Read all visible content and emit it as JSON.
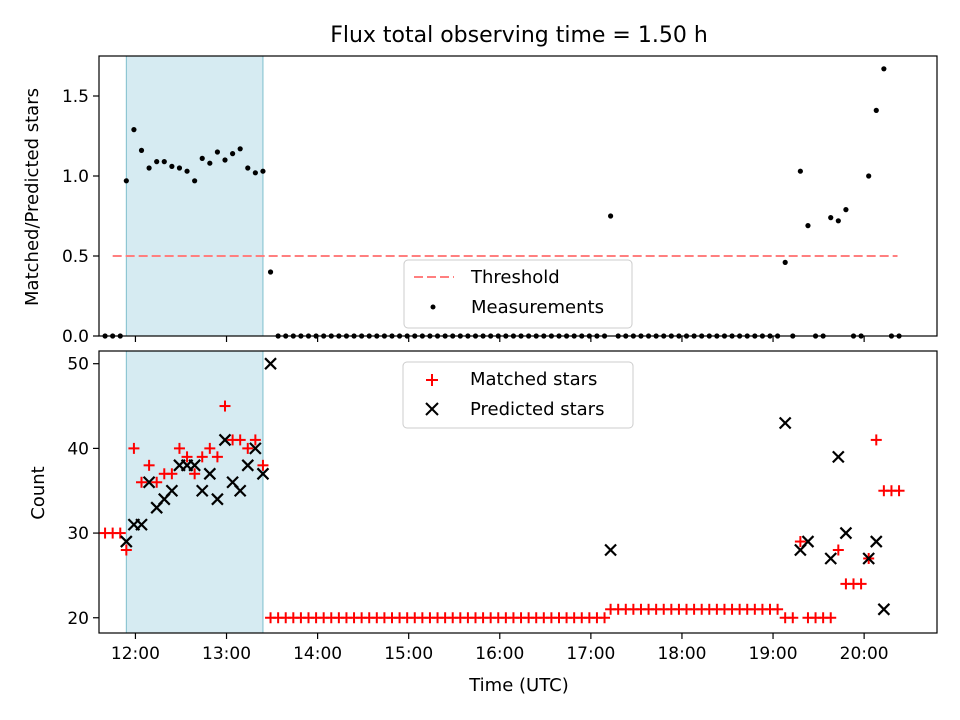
{
  "figure": {
    "title": "Flux total observing time = 1.50 h",
    "xlabel": "Time (UTC)"
  },
  "chart_data": [
    {
      "type": "scatter",
      "ylabel": "Matched/Predicted stars",
      "ylim": [
        0,
        1.75
      ],
      "xlim": [
        "11:36",
        "20:48"
      ],
      "yticks": [
        0.0,
        0.5,
        1.0,
        1.5
      ],
      "ytick_labels": [
        "0.0",
        "0.5",
        "1.0",
        "1.5"
      ],
      "shaded_interval": [
        "11:54",
        "13:24"
      ],
      "legend": {
        "placement": "lower-center",
        "entries": [
          "Threshold",
          "Measurements"
        ]
      },
      "threshold": {
        "name": "Threshold",
        "value": 0.5,
        "x_range": [
          "11:45",
          "20:22"
        ],
        "color": "#ff7f7f"
      },
      "series": [
        {
          "name": "Measurements",
          "color": "#000000",
          "points": [
            [
              "11:40",
              0
            ],
            [
              "11:45",
              0
            ],
            [
              "11:50",
              0
            ],
            [
              "11:54",
              0.97
            ],
            [
              "11:59",
              1.29
            ],
            [
              "12:04",
              1.16
            ],
            [
              "12:09",
              1.05
            ],
            [
              "12:14",
              1.09
            ],
            [
              "12:19",
              1.09
            ],
            [
              "12:24",
              1.06
            ],
            [
              "12:29",
              1.05
            ],
            [
              "12:34",
              1.03
            ],
            [
              "12:39",
              0.97
            ],
            [
              "12:44",
              1.11
            ],
            [
              "12:49",
              1.08
            ],
            [
              "12:54",
              1.15
            ],
            [
              "12:59",
              1.1
            ],
            [
              "13:04",
              1.14
            ],
            [
              "13:09",
              1.17
            ],
            [
              "13:14",
              1.05
            ],
            [
              "13:19",
              1.02
            ],
            [
              "13:24",
              1.03
            ],
            [
              "13:29",
              0.4
            ],
            [
              "13:34",
              0
            ],
            [
              "13:39",
              0
            ],
            [
              "13:44",
              0
            ],
            [
              "13:49",
              0
            ],
            [
              "13:54",
              0
            ],
            [
              "13:59",
              0
            ],
            [
              "14:04",
              0
            ],
            [
              "14:09",
              0
            ],
            [
              "14:14",
              0
            ],
            [
              "14:19",
              0
            ],
            [
              "14:24",
              0
            ],
            [
              "14:29",
              0
            ],
            [
              "14:34",
              0
            ],
            [
              "14:39",
              0
            ],
            [
              "14:44",
              0
            ],
            [
              "14:49",
              0
            ],
            [
              "14:54",
              0
            ],
            [
              "14:59",
              0
            ],
            [
              "15:04",
              0
            ],
            [
              "15:09",
              0
            ],
            [
              "15:14",
              0
            ],
            [
              "15:19",
              0
            ],
            [
              "15:24",
              0
            ],
            [
              "15:29",
              0
            ],
            [
              "15:34",
              0
            ],
            [
              "15:39",
              0
            ],
            [
              "15:44",
              0
            ],
            [
              "15:49",
              0
            ],
            [
              "15:54",
              0
            ],
            [
              "15:59",
              0
            ],
            [
              "16:04",
              0
            ],
            [
              "16:09",
              0
            ],
            [
              "16:14",
              0
            ],
            [
              "16:19",
              0
            ],
            [
              "16:24",
              0
            ],
            [
              "16:29",
              0
            ],
            [
              "16:34",
              0
            ],
            [
              "16:39",
              0
            ],
            [
              "16:44",
              0
            ],
            [
              "16:49",
              0
            ],
            [
              "16:54",
              0
            ],
            [
              "16:59",
              0
            ],
            [
              "17:04",
              0
            ],
            [
              "17:09",
              0
            ],
            [
              "17:13",
              0.75
            ],
            [
              "17:18",
              0
            ],
            [
              "17:23",
              0
            ],
            [
              "17:28",
              0
            ],
            [
              "17:33",
              0
            ],
            [
              "17:38",
              0
            ],
            [
              "17:43",
              0
            ],
            [
              "17:48",
              0
            ],
            [
              "17:53",
              0
            ],
            [
              "17:58",
              0
            ],
            [
              "18:03",
              0
            ],
            [
              "18:08",
              0
            ],
            [
              "18:13",
              0
            ],
            [
              "18:18",
              0
            ],
            [
              "18:23",
              0
            ],
            [
              "18:28",
              0
            ],
            [
              "18:33",
              0
            ],
            [
              "18:38",
              0
            ],
            [
              "18:43",
              0
            ],
            [
              "18:48",
              0
            ],
            [
              "18:53",
              0
            ],
            [
              "18:58",
              0
            ],
            [
              "19:03",
              0
            ],
            [
              "19:08",
              0.46
            ],
            [
              "19:13",
              0
            ],
            [
              "19:18",
              1.03
            ],
            [
              "19:23",
              0.69
            ],
            [
              "19:28",
              0
            ],
            [
              "19:33",
              0
            ],
            [
              "19:38",
              0.74
            ],
            [
              "19:43",
              0.72
            ],
            [
              "19:48",
              0.79
            ],
            [
              "19:53",
              0
            ],
            [
              "19:58",
              0
            ],
            [
              "20:03",
              1.0
            ],
            [
              "20:08",
              1.41
            ],
            [
              "20:13",
              1.67
            ],
            [
              "20:18",
              0
            ],
            [
              "20:23",
              0
            ]
          ]
        }
      ]
    },
    {
      "type": "scatter",
      "ylabel": "Count",
      "ylim": [
        18.2,
        51.5
      ],
      "xlim": [
        "11:36",
        "20:48"
      ],
      "yticks": [
        20,
        30,
        40,
        50
      ],
      "ytick_labels": [
        "20",
        "30",
        "40",
        "50"
      ],
      "xticks": [
        "12:00",
        "13:00",
        "14:00",
        "15:00",
        "16:00",
        "17:00",
        "18:00",
        "19:00",
        "20:00"
      ],
      "xtick_labels": [
        "12:00",
        "13:00",
        "14:00",
        "15:00",
        "16:00",
        "17:00",
        "18:00",
        "19:00",
        "20:00"
      ],
      "shaded_interval": [
        "11:54",
        "13:24"
      ],
      "legend": {
        "placement": "upper-center",
        "entries": [
          "Matched stars",
          "Predicted stars"
        ]
      },
      "series": [
        {
          "name": "Matched stars",
          "marker": "plus",
          "color": "#ff0000",
          "points": [
            [
              "11:40",
              30
            ],
            [
              "11:45",
              30
            ],
            [
              "11:50",
              30
            ],
            [
              "11:54",
              28
            ],
            [
              "11:59",
              40
            ],
            [
              "12:04",
              36
            ],
            [
              "12:09",
              38
            ],
            [
              "12:14",
              36
            ],
            [
              "12:19",
              37
            ],
            [
              "12:24",
              37
            ],
            [
              "12:29",
              40
            ],
            [
              "12:34",
              39
            ],
            [
              "12:39",
              37
            ],
            [
              "12:44",
              39
            ],
            [
              "12:49",
              40
            ],
            [
              "12:54",
              39
            ],
            [
              "12:59",
              45
            ],
            [
              "13:04",
              41
            ],
            [
              "13:09",
              41
            ],
            [
              "13:14",
              40
            ],
            [
              "13:19",
              41
            ],
            [
              "13:24",
              38
            ],
            [
              "13:29",
              20
            ],
            [
              "13:34",
              20
            ],
            [
              "13:39",
              20
            ],
            [
              "13:44",
              20
            ],
            [
              "13:49",
              20
            ],
            [
              "13:54",
              20
            ],
            [
              "13:59",
              20
            ],
            [
              "14:04",
              20
            ],
            [
              "14:09",
              20
            ],
            [
              "14:14",
              20
            ],
            [
              "14:19",
              20
            ],
            [
              "14:24",
              20
            ],
            [
              "14:29",
              20
            ],
            [
              "14:34",
              20
            ],
            [
              "14:39",
              20
            ],
            [
              "14:44",
              20
            ],
            [
              "14:49",
              20
            ],
            [
              "14:54",
              20
            ],
            [
              "14:59",
              20
            ],
            [
              "15:04",
              20
            ],
            [
              "15:09",
              20
            ],
            [
              "15:14",
              20
            ],
            [
              "15:19",
              20
            ],
            [
              "15:24",
              20
            ],
            [
              "15:29",
              20
            ],
            [
              "15:34",
              20
            ],
            [
              "15:39",
              20
            ],
            [
              "15:44",
              20
            ],
            [
              "15:49",
              20
            ],
            [
              "15:54",
              20
            ],
            [
              "15:59",
              20
            ],
            [
              "16:04",
              20
            ],
            [
              "16:09",
              20
            ],
            [
              "16:14",
              20
            ],
            [
              "16:19",
              20
            ],
            [
              "16:24",
              20
            ],
            [
              "16:29",
              20
            ],
            [
              "16:34",
              20
            ],
            [
              "16:39",
              20
            ],
            [
              "16:44",
              20
            ],
            [
              "16:49",
              20
            ],
            [
              "16:54",
              20
            ],
            [
              "16:59",
              20
            ],
            [
              "17:04",
              20
            ],
            [
              "17:09",
              20
            ],
            [
              "17:13",
              21
            ],
            [
              "17:18",
              21
            ],
            [
              "17:23",
              21
            ],
            [
              "17:28",
              21
            ],
            [
              "17:33",
              21
            ],
            [
              "17:38",
              21
            ],
            [
              "17:43",
              21
            ],
            [
              "17:48",
              21
            ],
            [
              "17:53",
              21
            ],
            [
              "17:58",
              21
            ],
            [
              "18:03",
              21
            ],
            [
              "18:08",
              21
            ],
            [
              "18:13",
              21
            ],
            [
              "18:18",
              21
            ],
            [
              "18:23",
              21
            ],
            [
              "18:28",
              21
            ],
            [
              "18:33",
              21
            ],
            [
              "18:38",
              21
            ],
            [
              "18:43",
              21
            ],
            [
              "18:48",
              21
            ],
            [
              "18:53",
              21
            ],
            [
              "18:58",
              21
            ],
            [
              "19:03",
              21
            ],
            [
              "19:08",
              20
            ],
            [
              "19:13",
              20
            ],
            [
              "19:18",
              29
            ],
            [
              "19:23",
              20
            ],
            [
              "19:28",
              20
            ],
            [
              "19:33",
              20
            ],
            [
              "19:38",
              20
            ],
            [
              "19:43",
              28
            ],
            [
              "19:48",
              24
            ],
            [
              "19:53",
              24
            ],
            [
              "19:58",
              24
            ],
            [
              "20:03",
              27
            ],
            [
              "20:08",
              41
            ],
            [
              "20:13",
              35
            ],
            [
              "20:18",
              35
            ],
            [
              "20:23",
              35
            ]
          ]
        },
        {
          "name": "Predicted stars",
          "marker": "x",
          "color": "#000000",
          "points": [
            [
              "11:54",
              29
            ],
            [
              "11:59",
              31
            ],
            [
              "12:04",
              31
            ],
            [
              "12:09",
              36
            ],
            [
              "12:14",
              33
            ],
            [
              "12:19",
              34
            ],
            [
              "12:24",
              35
            ],
            [
              "12:29",
              38
            ],
            [
              "12:34",
              38
            ],
            [
              "12:39",
              38
            ],
            [
              "12:44",
              35
            ],
            [
              "12:49",
              37
            ],
            [
              "12:54",
              34
            ],
            [
              "12:59",
              41
            ],
            [
              "13:04",
              36
            ],
            [
              "13:09",
              35
            ],
            [
              "13:14",
              38
            ],
            [
              "13:19",
              40
            ],
            [
              "13:24",
              37
            ],
            [
              "13:29",
              50
            ],
            [
              "17:13",
              28
            ],
            [
              "19:08",
              43
            ],
            [
              "19:18",
              28
            ],
            [
              "19:23",
              29
            ],
            [
              "19:38",
              27
            ],
            [
              "19:43",
              39
            ],
            [
              "19:48",
              30
            ],
            [
              "20:03",
              27
            ],
            [
              "20:08",
              29
            ],
            [
              "20:13",
              21
            ]
          ]
        }
      ]
    }
  ]
}
